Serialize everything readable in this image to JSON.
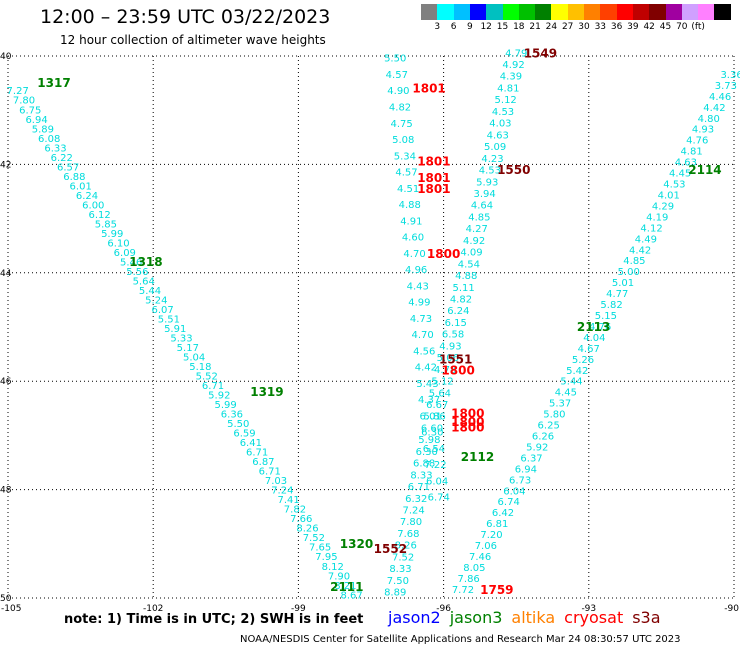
{
  "header": {
    "title": "12:00 – 23:59 UTC 03/22/2023",
    "subtitle": "12 hour collection of altimeter wave heights"
  },
  "colorbar": {
    "colors": [
      "#808080",
      "#00ffff",
      "#00c0ff",
      "#0000ff",
      "#00c0c0",
      "#00ff00",
      "#00c000",
      "#008000",
      "#ffff00",
      "#ffc000",
      "#ff8000",
      "#ff4000",
      "#ff0000",
      "#c00000",
      "#800000",
      "#a000a0",
      "#d0a0ff",
      "#ff80ff",
      "#000000"
    ],
    "labels": [
      "3",
      "6",
      "9",
      "12",
      "15",
      "18",
      "21",
      "24",
      "27",
      "30",
      "33",
      "36",
      "39",
      "42",
      "45",
      "70",
      "(ft)"
    ]
  },
  "map": {
    "lat_labels": [
      "40",
      "42",
      "44",
      "46",
      "48",
      "50"
    ],
    "lon_labels": [
      "-105",
      "-102",
      "-99",
      "-96",
      "-93",
      "-90"
    ],
    "grid": "dotted"
  },
  "time_labels": [
    {
      "text": "1317",
      "color": "green",
      "lon": -104.05,
      "lat": 40.5
    },
    {
      "text": "1318",
      "color": "green",
      "lon": -102.15,
      "lat": 43.8
    },
    {
      "text": "1319",
      "color": "green",
      "lon": -99.65,
      "lat": 46.2
    },
    {
      "text": "1320",
      "color": "green",
      "lon": -97.8,
      "lat": 49.0
    },
    {
      "text": "2111",
      "color": "green",
      "lon": -98.0,
      "lat": 49.8
    },
    {
      "text": "2112",
      "color": "green",
      "lon": -95.3,
      "lat": 47.4
    },
    {
      "text": "2113",
      "color": "green",
      "lon": -92.9,
      "lat": 45.0
    },
    {
      "text": "2114",
      "color": "green",
      "lon": -90.6,
      "lat": 42.1
    },
    {
      "text": "1549",
      "color": "#800000",
      "lon": -94.0,
      "lat": 39.95
    },
    {
      "text": "1550",
      "color": "#800000",
      "lon": -94.55,
      "lat": 42.1
    },
    {
      "text": "1551",
      "color": "#800000",
      "lon": -95.75,
      "lat": 45.6
    },
    {
      "text": "1552",
      "color": "#800000",
      "lon": -97.1,
      "lat": 49.1
    },
    {
      "text": "1801",
      "color": "red",
      "lon": -96.3,
      "lat": 40.6
    },
    {
      "text": "1801",
      "color": "red",
      "lon": -96.2,
      "lat": 41.95
    },
    {
      "text": "1801",
      "color": "red",
      "lon": -96.2,
      "lat": 42.25
    },
    {
      "text": "1801",
      "color": "red",
      "lon": -96.2,
      "lat": 42.45
    },
    {
      "text": "1800",
      "color": "red",
      "lon": -96.0,
      "lat": 43.65
    },
    {
      "text": "1800",
      "color": "red",
      "lon": -95.7,
      "lat": 45.8
    },
    {
      "text": "1800",
      "color": "red",
      "lon": -95.5,
      "lat": 46.6
    },
    {
      "text": "1800",
      "color": "red",
      "lon": -95.5,
      "lat": 46.75
    },
    {
      "text": "1800",
      "color": "red",
      "lon": -95.5,
      "lat": 46.85
    },
    {
      "text": "1759",
      "color": "red",
      "lon": -94.9,
      "lat": 49.85
    }
  ],
  "tracks": [
    {
      "name": "track-1317-2111",
      "sat": "jason3",
      "color": "#00dcdc",
      "values": [
        "7.27",
        "7.80",
        "6.75",
        "6.94",
        "5.89",
        "6.08",
        "6.33",
        "6.22",
        "6.57",
        "6.88",
        "6.01",
        "6.24",
        "6.00",
        "6.12",
        "5.85",
        "5.99",
        "6.10",
        "6.09",
        "5.46",
        "5.56",
        "5.64",
        "5.44",
        "5.24",
        "6.07",
        "5.51",
        "5.91",
        "5.33",
        "5.17",
        "5.04",
        "5.18",
        "5.52",
        "6.71",
        "5.92",
        "5.99",
        "6.36",
        "5.50",
        "6.59",
        "6.41",
        "6.71",
        "6.87",
        "6.71",
        "7.03",
        "7.24",
        "7.41",
        "7.82",
        "7.66",
        "8.26",
        "7.52",
        "7.65",
        "7.95",
        "8.12",
        "7.90",
        "8.21",
        "8.67"
      ],
      "start": [
        -104.8,
        40.65
      ],
      "end": [
        -97.9,
        49.95
      ]
    },
    {
      "name": "track-1549-1552",
      "sat": "jason3",
      "color": "#00dcdc",
      "values": [
        "4.79",
        "4.92",
        "4.39",
        "4.81",
        "5.12",
        "4.53",
        "4.03",
        "4.63",
        "5.09",
        "4.23",
        "4.53",
        "5.93",
        "3.94",
        "4.64",
        "4.85",
        "4.27",
        "4.92",
        "4.09",
        "4.54",
        "4.88",
        "5.11",
        "4.82",
        "6.24",
        "6.15",
        "6.58",
        "4.93",
        "5.06",
        "4.78",
        "5.12",
        "5.64",
        "6.67",
        "5.86",
        "6.60",
        "5.98",
        "6.30",
        "6.88",
        "8.33",
        "6.71",
        "6.32",
        "7.24",
        "7.80",
        "7.68",
        "8.26",
        "7.52",
        "8.33",
        "7.50",
        "8.89"
      ],
      "start": [
        -94.5,
        39.95
      ],
      "end": [
        -97.0,
        49.9
      ]
    },
    {
      "name": "track-2111-2114",
      "sat": "jason3",
      "color": "#00dcdc",
      "values": [
        "3.36",
        "3.73",
        "4.46",
        "4.42",
        "4.80",
        "4.93",
        "4.76",
        "4.81",
        "4.63",
        "4.45",
        "4.53",
        "4.01",
        "4.29",
        "4.19",
        "4.12",
        "4.49",
        "4.42",
        "4.85",
        "5.00",
        "5.01",
        "4.77",
        "5.82",
        "5.15",
        "4.76",
        "4.04",
        "4.67",
        "5.26",
        "5.42",
        "5.44",
        "4.45",
        "5.37",
        "5.80",
        "6.25",
        "6.26",
        "5.92",
        "6.37",
        "6.94",
        "6.73",
        "6.04",
        "6.74",
        "6.42",
        "6.81",
        "7.20",
        "7.06",
        "7.46",
        "8.05",
        "7.86",
        "7.72"
      ],
      "start": [
        -90.05,
        40.35
      ],
      "end": [
        -95.6,
        49.85
      ]
    },
    {
      "name": "track-1800-1801",
      "sat": "jason3",
      "color": "#00dcdc",
      "values": [
        "5.50",
        "4.57",
        "4.90",
        "4.82",
        "4.75",
        "5.08",
        "5.34",
        "4.57",
        "4.51",
        "4.88",
        "4.91",
        "4.60",
        "4.70",
        "4.96",
        "4.43",
        "4.99",
        "4.73",
        "4.70",
        "4.56",
        "4.42",
        "5.43",
        "4.37",
        "6.01",
        "6.30",
        "6.54",
        "7.22",
        "6.04",
        "6.74"
      ],
      "start": [
        -97.0,
        40.05
      ],
      "end": [
        -96.1,
        48.15
      ]
    }
  ],
  "note": "note:  1) Time is in UTC; 2) SWH is in feet",
  "legend": [
    {
      "label": "jason2",
      "color": "#0000ff"
    },
    {
      "label": "jason3",
      "color": "#008000"
    },
    {
      "label": "altika",
      "color": "#ff8000"
    },
    {
      "label": "cryosat",
      "color": "#ff0000"
    },
    {
      "label": "s3a",
      "color": "#800000"
    }
  ],
  "footer": "NOAA/NESDIS Center for Satellite Applications and Research    Mar 24 08:30:57 UTC 2023"
}
